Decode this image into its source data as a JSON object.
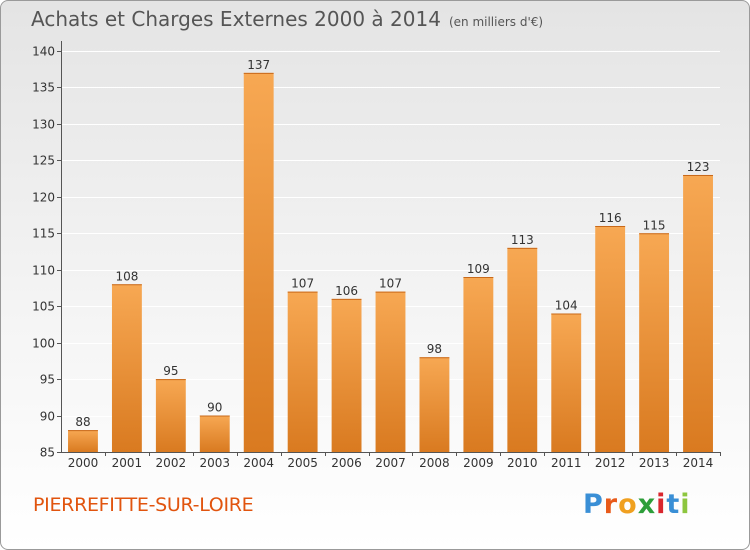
{
  "title": "Achats et Charges Externes 2000 à 2014",
  "subtitle": "(en milliers d'€)",
  "commune": "PIERREFITTE-SUR-LOIRE",
  "logo": {
    "text": "Proxiti",
    "letters": [
      "P",
      "r",
      "o",
      "x",
      "i",
      "t",
      "i"
    ],
    "colors": [
      "#3a8fd6",
      "#e85a1a",
      "#f0a020",
      "#2d9e3a",
      "#d9262e",
      "#3a8fd6",
      "#8dc63f"
    ]
  },
  "colors": {
    "bar_light": "#f7a853",
    "bar_dark": "#d97a20",
    "commune": "#e1540e"
  },
  "chart_data": {
    "type": "bar",
    "categories": [
      "2000",
      "2001",
      "2002",
      "2003",
      "2004",
      "2005",
      "2006",
      "2007",
      "2008",
      "2009",
      "2010",
      "2011",
      "2012",
      "2013",
      "2014"
    ],
    "values": [
      88,
      108,
      95,
      90,
      137,
      107,
      106,
      107,
      98,
      109,
      113,
      104,
      116,
      115,
      123
    ],
    "ylim": [
      85,
      140
    ],
    "yticks": [
      85,
      90,
      95,
      100,
      105,
      110,
      115,
      120,
      125,
      130,
      135,
      140
    ],
    "grid": true,
    "xlabel": "",
    "ylabel": ""
  }
}
